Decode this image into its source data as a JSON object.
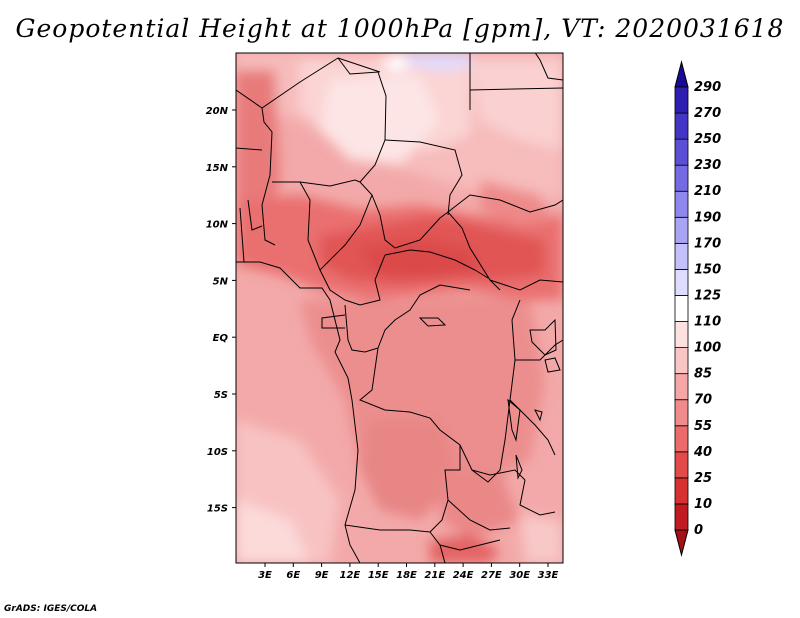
{
  "title": "Geopotential Height at 1000hPa [gpm], VT: 2020031618",
  "footer": "GrADS: IGES/COLA",
  "map": {
    "variable": "Geopotential Height",
    "level": "1000hPa",
    "units": "gpm",
    "valid_time": "2020031618",
    "lat_labels": [
      "20N",
      "15N",
      "10N",
      "5N",
      "EQ",
      "5S",
      "10S",
      "15S"
    ],
    "lon_labels": [
      "3E",
      "6E",
      "9E",
      "12E",
      "15E",
      "18E",
      "21E",
      "24E",
      "27E",
      "30E",
      "33E"
    ]
  },
  "colorbar": {
    "levels": [
      "0",
      "10",
      "25",
      "40",
      "55",
      "70",
      "85",
      "100",
      "110",
      "125",
      "150",
      "170",
      "190",
      "210",
      "230",
      "250",
      "270",
      "290"
    ],
    "colors": [
      "#a50f15",
      "#c01b22",
      "#d73232",
      "#e34a4a",
      "#eb6b6b",
      "#f08b8b",
      "#f5a6a6",
      "#f9c5c5",
      "#fde0e0",
      "#ffffff",
      "#dedcff",
      "#c4c0fb",
      "#aaa4f5",
      "#8f86ee",
      "#766ae3",
      "#5c4ed5",
      "#4535c5",
      "#2f1fb0",
      "#1a0b96"
    ]
  }
}
